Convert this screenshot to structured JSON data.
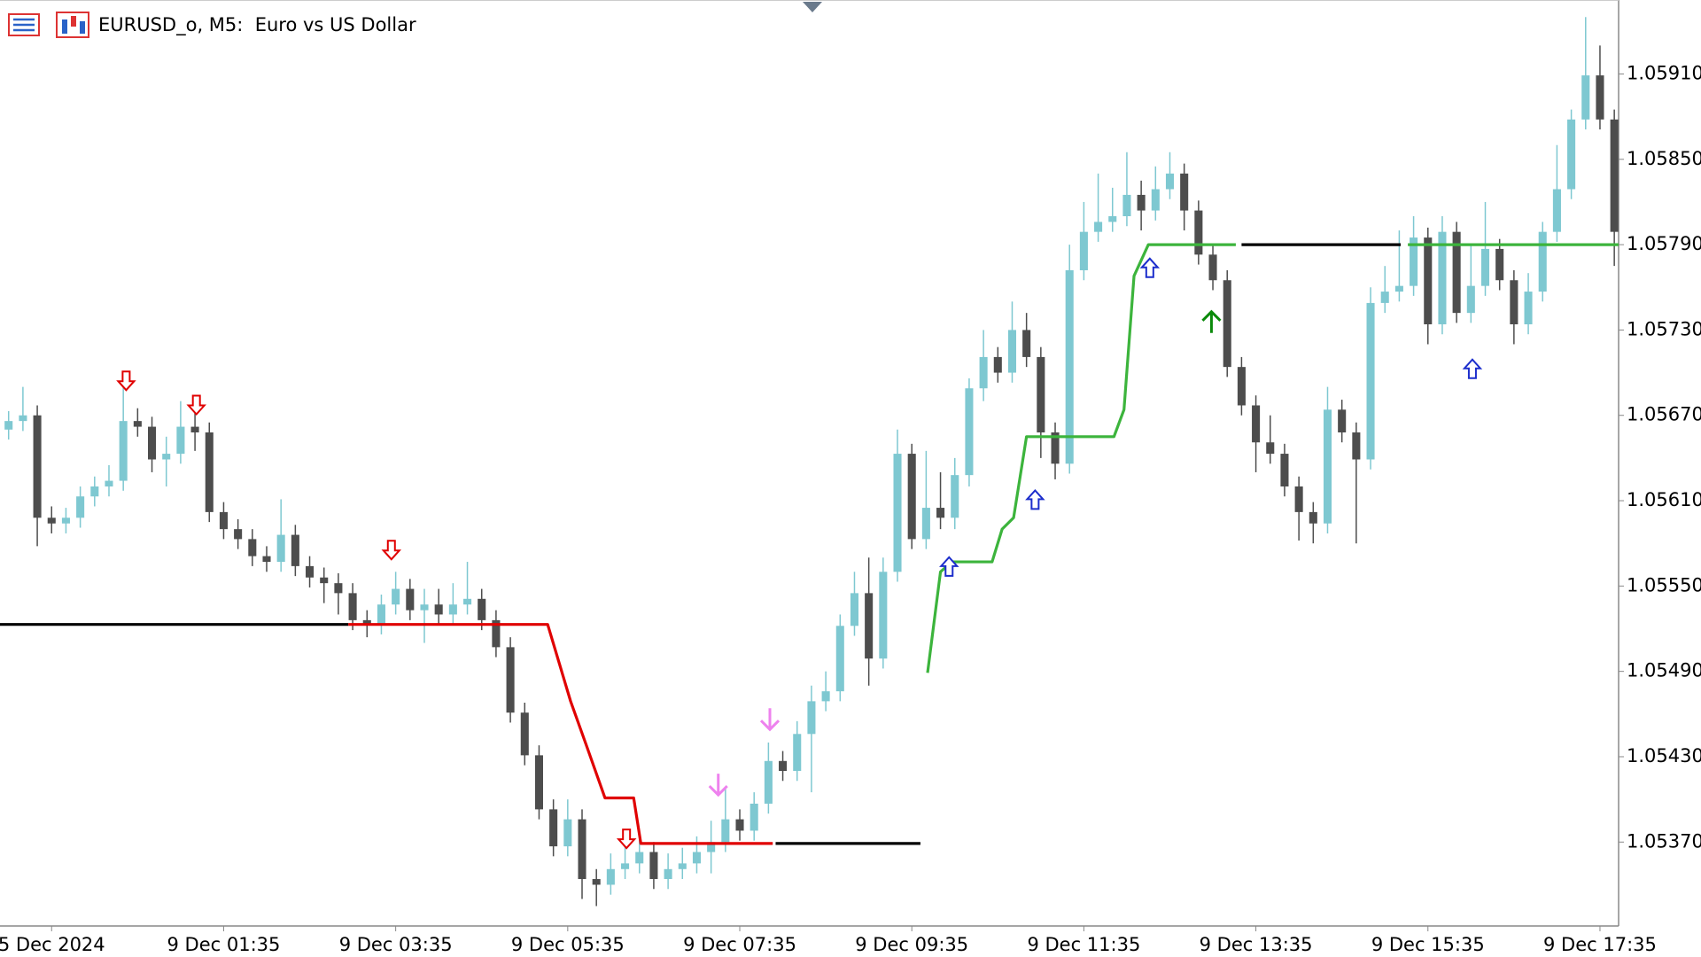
{
  "chart_data": {
    "type": "candlestick",
    "title": "EURUSD_o, M5:  Euro vs US Dollar",
    "up_color": "#7ec8d1",
    "down_color": "#4d4d4d",
    "xlim": [
      -0.6,
      112.3
    ],
    "ylim": [
      1.05311,
      1.05962
    ],
    "xticks": [
      {
        "value": 3,
        "label": "5 Dec 2024"
      },
      {
        "value": 15,
        "label": "9 Dec 01:35"
      },
      {
        "value": 27,
        "label": "9 Dec 03:35"
      },
      {
        "value": 39,
        "label": "9 Dec 05:35"
      },
      {
        "value": 51,
        "label": "9 Dec 07:35"
      },
      {
        "value": 63,
        "label": "9 Dec 09:35"
      },
      {
        "value": 75,
        "label": "9 Dec 11:35"
      },
      {
        "value": 87,
        "label": "9 Dec 13:35"
      },
      {
        "value": 99,
        "label": "9 Dec 15:35"
      },
      {
        "value": 111,
        "label": "9 Dec 17:35"
      }
    ],
    "yticks": [
      {
        "value": 1.0591,
        "label": "1.05910"
      },
      {
        "value": 1.0585,
        "label": "1.05850"
      },
      {
        "value": 1.0579,
        "label": "1.05790"
      },
      {
        "value": 1.0573,
        "label": "1.05730"
      },
      {
        "value": 1.0567,
        "label": "1.05670"
      },
      {
        "value": 1.0561,
        "label": "1.05610"
      },
      {
        "value": 1.0555,
        "label": "1.05550"
      },
      {
        "value": 1.0549,
        "label": "1.05490"
      },
      {
        "value": 1.0543,
        "label": "1.05430"
      },
      {
        "value": 1.0537,
        "label": "1.05370"
      }
    ],
    "open": [
      1.0566,
      1.05666,
      1.0567,
      1.05598,
      1.05594,
      1.05598,
      1.05613,
      1.0562,
      1.05624,
      1.05666,
      1.05662,
      1.05639,
      1.05643,
      1.05662,
      1.05658,
      1.05602,
      1.0559,
      1.05583,
      1.05571,
      1.05567,
      1.05586,
      1.05564,
      1.05556,
      1.05552,
      1.05545,
      1.05526,
      1.05523,
      1.05537,
      1.05548,
      1.05533,
      1.05537,
      1.0553,
      1.05537,
      1.05541,
      1.05526,
      1.05507,
      1.05461,
      1.05431,
      1.05393,
      1.05367,
      1.05386,
      1.05344,
      1.0534,
      1.05351,
      1.05355,
      1.05363,
      1.05344,
      1.05351,
      1.05355,
      1.05363,
      1.0537,
      1.05386,
      1.05378,
      1.05397,
      1.05427,
      1.0542,
      1.05446,
      1.05469,
      1.05476,
      1.05522,
      1.05545,
      1.05499,
      1.0556,
      1.05643,
      1.05583,
      1.05605,
      1.05598,
      1.05628,
      1.05689,
      1.05711,
      1.057,
      1.0573,
      1.05711,
      1.05658,
      1.05636,
      1.05772,
      1.05799,
      1.05806,
      1.0581,
      1.05825,
      1.05814,
      1.05829,
      1.0584,
      1.05814,
      1.05783,
      1.05765,
      1.05704,
      1.05677,
      1.05651,
      1.05643,
      1.0562,
      1.05602,
      1.05594,
      1.05674,
      1.05658,
      1.05639,
      1.05749,
      1.05757,
      1.05761,
      1.05795,
      1.05734,
      1.05799,
      1.05742,
      1.05761,
      1.05787,
      1.05765,
      1.05734,
      1.05757,
      1.05799,
      1.05829,
      1.05878,
      1.05909,
      1.05878
    ],
    "high": [
      1.05673,
      1.0569,
      1.05677,
      1.05606,
      1.05605,
      1.0562,
      1.05627,
      1.05635,
      1.05695,
      1.05675,
      1.05669,
      1.05655,
      1.0568,
      1.05672,
      1.05665,
      1.05609,
      1.05597,
      1.0559,
      1.05578,
      1.05611,
      1.05593,
      1.05571,
      1.05563,
      1.05559,
      1.05552,
      1.05533,
      1.05544,
      1.0556,
      1.05555,
      1.05548,
      1.05548,
      1.05552,
      1.05567,
      1.05548,
      1.05533,
      1.05514,
      1.05468,
      1.05438,
      1.054,
      1.054,
      1.05393,
      1.05351,
      1.05362,
      1.05372,
      1.05378,
      1.0537,
      1.05362,
      1.05366,
      1.05374,
      1.05385,
      1.05408,
      1.05393,
      1.05405,
      1.0544,
      1.05434,
      1.05455,
      1.0548,
      1.0549,
      1.0553,
      1.0556,
      1.0557,
      1.0557,
      1.0566,
      1.0565,
      1.05645,
      1.0563,
      1.0564,
      1.05696,
      1.0573,
      1.05718,
      1.0575,
      1.05742,
      1.05718,
      1.05665,
      1.0579,
      1.0582,
      1.0584,
      1.0583,
      1.05855,
      1.05835,
      1.05845,
      1.05855,
      1.05847,
      1.05821,
      1.0579,
      1.05772,
      1.05711,
      1.05684,
      1.0567,
      1.0565,
      1.05627,
      1.05609,
      1.0569,
      1.05681,
      1.05665,
      1.0576,
      1.05775,
      1.058,
      1.0581,
      1.05802,
      1.0581,
      1.05806,
      1.0579,
      1.0582,
      1.05794,
      1.05772,
      1.0577,
      1.05806,
      1.0586,
      1.05885,
      1.0595,
      1.0593,
      1.05885
    ],
    "low": [
      1.05653,
      1.05659,
      1.05578,
      1.05587,
      1.05587,
      1.05591,
      1.05606,
      1.05613,
      1.05617,
      1.05655,
      1.0563,
      1.0562,
      1.05636,
      1.05645,
      1.05595,
      1.05583,
      1.05576,
      1.05564,
      1.0556,
      1.0556,
      1.05557,
      1.05549,
      1.05538,
      1.0553,
      1.05519,
      1.05514,
      1.05516,
      1.0553,
      1.05526,
      1.0551,
      1.05523,
      1.05523,
      1.0553,
      1.05519,
      1.055,
      1.05454,
      1.05424,
      1.05386,
      1.0536,
      1.0536,
      1.0533,
      1.05325,
      1.05333,
      1.05344,
      1.05348,
      1.05337,
      1.05337,
      1.05344,
      1.05348,
      1.05348,
      1.05363,
      1.05371,
      1.05371,
      1.0539,
      1.05413,
      1.05413,
      1.05405,
      1.05462,
      1.05469,
      1.05515,
      1.0548,
      1.05492,
      1.05553,
      1.05576,
      1.05576,
      1.0559,
      1.0559,
      1.0562,
      1.0568,
      1.05693,
      1.05693,
      1.05704,
      1.0564,
      1.05625,
      1.05629,
      1.05765,
      1.05792,
      1.05799,
      1.05803,
      1.058,
      1.05807,
      1.05822,
      1.058,
      1.05776,
      1.05758,
      1.05697,
      1.0567,
      1.0563,
      1.05636,
      1.05613,
      1.05582,
      1.0558,
      1.05587,
      1.05651,
      1.0558,
      1.05632,
      1.05742,
      1.0575,
      1.05754,
      1.0572,
      1.05727,
      1.05735,
      1.05735,
      1.05754,
      1.05758,
      1.0572,
      1.05727,
      1.0575,
      1.05792,
      1.05822,
      1.05871,
      1.05871,
      1.05775
    ],
    "close": [
      1.05666,
      1.0567,
      1.05598,
      1.05594,
      1.05598,
      1.05613,
      1.0562,
      1.05624,
      1.05666,
      1.05662,
      1.05639,
      1.05643,
      1.05662,
      1.05658,
      1.05602,
      1.0559,
      1.05583,
      1.05571,
      1.05567,
      1.05586,
      1.05564,
      1.05556,
      1.05552,
      1.05545,
      1.05526,
      1.05523,
      1.05537,
      1.05548,
      1.05533,
      1.05537,
      1.0553,
      1.05537,
      1.05541,
      1.05526,
      1.05507,
      1.05461,
      1.05431,
      1.05393,
      1.05367,
      1.05386,
      1.05344,
      1.0534,
      1.05351,
      1.05355,
      1.05363,
      1.05344,
      1.05351,
      1.05355,
      1.05363,
      1.0537,
      1.05386,
      1.05378,
      1.05397,
      1.05427,
      1.0542,
      1.05446,
      1.05469,
      1.05476,
      1.05522,
      1.05545,
      1.05499,
      1.0556,
      1.05643,
      1.05583,
      1.05605,
      1.05598,
      1.05628,
      1.05689,
      1.05711,
      1.057,
      1.0573,
      1.05711,
      1.05658,
      1.05636,
      1.05772,
      1.05799,
      1.05806,
      1.0581,
      1.05825,
      1.05814,
      1.05829,
      1.0584,
      1.05814,
      1.05783,
      1.05765,
      1.05704,
      1.05677,
      1.05651,
      1.05643,
      1.0562,
      1.05602,
      1.05594,
      1.05674,
      1.05658,
      1.05639,
      1.05749,
      1.05757,
      1.05761,
      1.05795,
      1.05734,
      1.05799,
      1.05742,
      1.05761,
      1.05787,
      1.05765,
      1.05734,
      1.05757,
      1.05799,
      1.05829,
      1.05878,
      1.05909,
      1.05878,
      1.05799
    ],
    "overlays": [
      {
        "color": "#000000",
        "x": [
          -0.6,
          23.7
        ],
        "values": [
          1.05523,
          1.05523
        ]
      },
      {
        "color": "#e00000",
        "x": [
          23.7,
          37.6,
          39.2,
          40.3,
          41.6,
          43.6,
          44.1,
          53.3
        ],
        "values": [
          1.05523,
          1.05523,
          1.05469,
          1.05438,
          1.05401,
          1.05401,
          1.05369,
          1.05369
        ]
      },
      {
        "color": "#000000",
        "x": [
          53.5,
          63.6
        ],
        "values": [
          1.05369,
          1.05369
        ]
      },
      {
        "color": "#3cb43c",
        "x": [
          64.1,
          65.0,
          65.8,
          68.6,
          69.3,
          70.1,
          71.0,
          77.1,
          77.8,
          78.5,
          79.5,
          85.6
        ],
        "values": [
          1.05489,
          1.0556,
          1.05567,
          1.05567,
          1.0559,
          1.05598,
          1.05655,
          1.05655,
          1.05674,
          1.05768,
          1.0579,
          1.0579
        ]
      },
      {
        "color": "#000000",
        "x": [
          86.0,
          97.1
        ],
        "values": [
          1.0579,
          1.0579
        ]
      },
      {
        "color": "#3cb43c",
        "x": [
          97.6,
          112.3
        ],
        "values": [
          1.0579,
          1.0579
        ]
      }
    ],
    "signals": [
      {
        "x": 8.2,
        "value": 1.05694,
        "kind": "down-hollow",
        "color": "#e00000"
      },
      {
        "x": 13.1,
        "value": 1.05677,
        "kind": "down-hollow",
        "color": "#e00000"
      },
      {
        "x": 26.7,
        "value": 1.05575,
        "kind": "down-hollow",
        "color": "#e00000"
      },
      {
        "x": 43.1,
        "value": 1.05372,
        "kind": "down-hollow",
        "color": "#e00000"
      },
      {
        "x": 53.1,
        "value": 1.05456,
        "kind": "down",
        "color": "#ee82ee"
      },
      {
        "x": 49.5,
        "value": 1.0541,
        "kind": "down",
        "color": "#ee82ee"
      },
      {
        "x": 65.6,
        "value": 1.05564,
        "kind": "up-hollow",
        "color": "#1c2ecc"
      },
      {
        "x": 71.6,
        "value": 1.05611,
        "kind": "up-hollow",
        "color": "#1c2ecc"
      },
      {
        "x": 79.6,
        "value": 1.05774,
        "kind": "up-hollow",
        "color": "#1c2ecc"
      },
      {
        "x": 102.1,
        "value": 1.05703,
        "kind": "up-hollow",
        "color": "#1c2ecc"
      },
      {
        "x": 83.9,
        "value": 1.05736,
        "kind": "up",
        "color": "#0a8a0a"
      }
    ]
  }
}
